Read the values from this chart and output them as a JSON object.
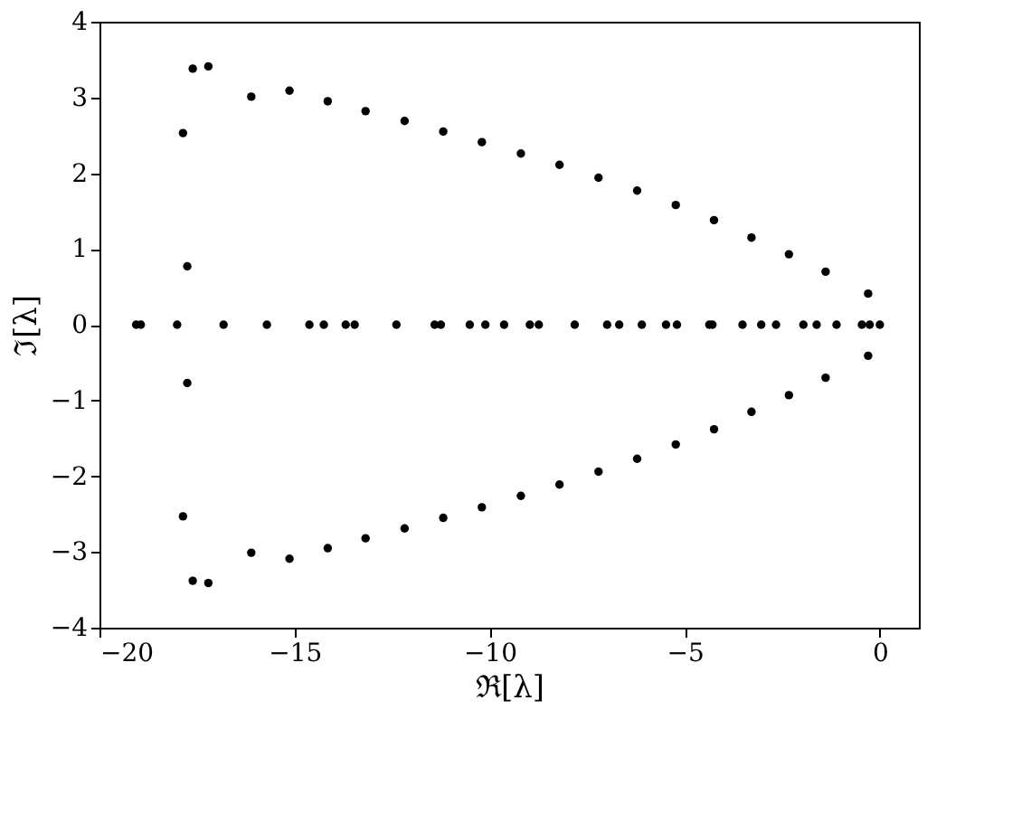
{
  "chart_data": {
    "type": "scatter",
    "xlabel": "ℜ[λ]",
    "ylabel": "ℑ[λ]",
    "xlim": [
      -20,
      1
    ],
    "xticks": [
      -20,
      -15,
      -10,
      -5,
      0
    ],
    "ylim": [
      -4,
      4
    ],
    "yticks": [
      -4,
      -3,
      -2,
      -1,
      0,
      1,
      2,
      3,
      4
    ],
    "grid": false,
    "legend": false,
    "marker": "circle",
    "series": [
      {
        "color": "#000000",
        "x": [
          -17.86,
          -17.61,
          -17.21,
          -16.11,
          -15.13,
          -14.15,
          -13.18,
          -12.18,
          -11.19,
          -10.2,
          -9.2,
          -8.21,
          -7.21,
          -6.22,
          -5.23,
          -4.25,
          -3.29,
          -2.33,
          -1.39,
          -0.3,
          -17.75
        ],
        "values": [
          2.53,
          3.38,
          3.41,
          3.01,
          3.09,
          2.95,
          2.82,
          2.69,
          2.55,
          2.41,
          2.26,
          2.11,
          1.94,
          1.77,
          1.58,
          1.38,
          1.15,
          0.93,
          0.7,
          0.41,
          0.77
        ]
      },
      {
        "color": "#000000",
        "x": [
          -17.86,
          -17.61,
          -17.21,
          -16.11,
          -15.13,
          -14.15,
          -13.18,
          -12.18,
          -11.19,
          -10.2,
          -9.2,
          -8.21,
          -7.21,
          -6.22,
          -5.23,
          -4.25,
          -3.29,
          -2.33,
          -1.39,
          -0.3,
          -17.75
        ],
        "values": [
          -2.53,
          -3.38,
          -3.41,
          -3.01,
          -3.09,
          -2.95,
          -2.82,
          -2.69,
          -2.55,
          -2.41,
          -2.26,
          -2.11,
          -1.94,
          -1.77,
          -1.58,
          -1.38,
          -1.15,
          -0.93,
          -0.7,
          -0.41,
          -0.77
        ]
      },
      {
        "color": "#000000",
        "x": [
          -19.06,
          -18.94,
          -18.01,
          -16.82,
          -15.71,
          -14.62,
          -14.25,
          -13.69,
          -13.46,
          -12.39,
          -11.41,
          -11.25,
          -10.51,
          -10.11,
          -9.63,
          -8.97,
          -8.74,
          -7.82,
          -6.99,
          -6.68,
          -6.1,
          -5.48,
          -5.2,
          -4.37,
          -4.29,
          -3.52,
          -3.04,
          -2.66,
          -1.96,
          -1.62,
          -1.11,
          -0.46,
          -0.26,
          0
        ],
        "values": [
          0,
          0,
          0,
          0,
          0,
          0,
          0,
          0,
          0,
          0,
          0,
          0,
          0,
          0,
          0,
          0,
          0,
          0,
          0,
          0,
          0,
          0,
          0,
          0,
          0,
          0,
          0,
          0,
          0,
          0,
          0,
          0,
          0,
          0
        ]
      }
    ]
  }
}
